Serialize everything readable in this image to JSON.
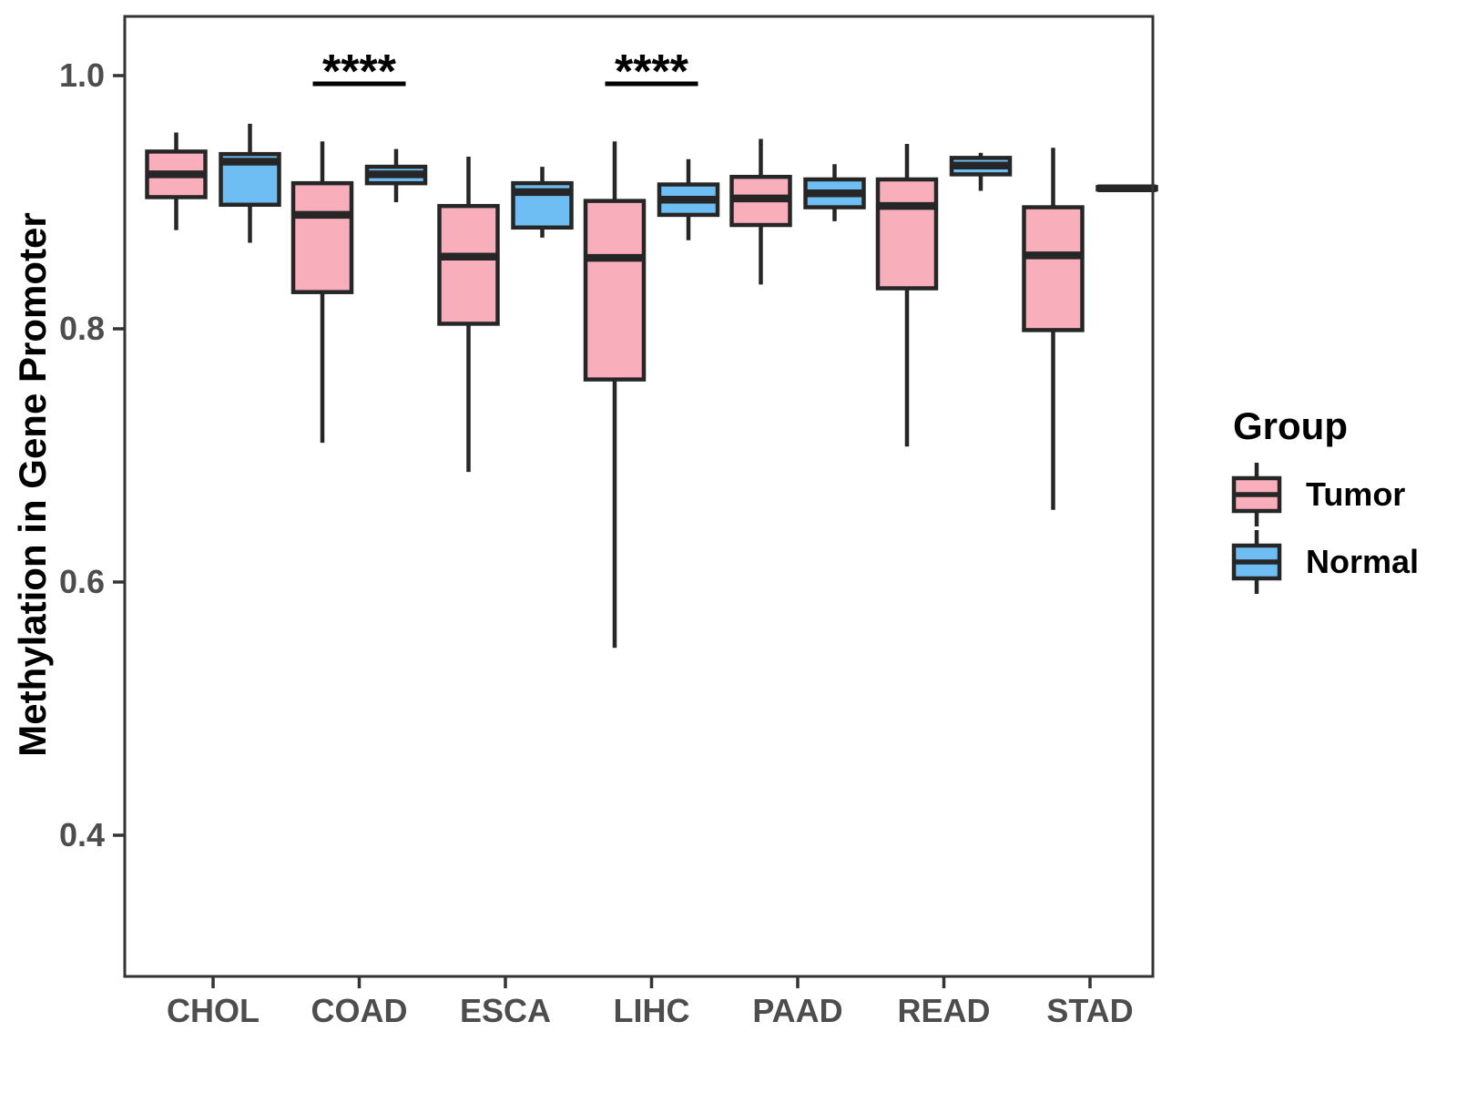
{
  "chart_data": {
    "type": "boxplot",
    "title": "",
    "xlabel": "",
    "ylabel": "Methylation in Gene Promoter",
    "ylim": [
      0.29,
      1.05
    ],
    "grid": "off",
    "yticks": {
      "values": [
        1.0,
        0.8,
        0.6,
        0.4
      ],
      "labels": [
        "1.0",
        "0.8",
        "0.6",
        "0.4"
      ]
    },
    "categories": [
      "CHOL",
      "COAD",
      "ESCA",
      "LIHC",
      "PAAD",
      "READ",
      "STAD"
    ],
    "colors": {
      "tumor": "#F9AEBC",
      "normal": "#6FBEF3",
      "box_stroke": "#262626",
      "axis": "#333333",
      "axis_text": "#4d4d4d"
    },
    "series": [
      {
        "name": "Tumor",
        "color": "#F9AEBC",
        "boxes": [
          {
            "category": "CHOL",
            "low": 0.878,
            "q1": 0.904,
            "median": 0.922,
            "q3": 0.94,
            "high": 0.955
          },
          {
            "category": "COAD",
            "low": 0.71,
            "q1": 0.829,
            "median": 0.89,
            "q3": 0.915,
            "high": 0.948
          },
          {
            "category": "ESCA",
            "low": 0.687,
            "q1": 0.804,
            "median": 0.857,
            "q3": 0.897,
            "high": 0.936
          },
          {
            "category": "LIHC",
            "low": 0.548,
            "q1": 0.76,
            "median": 0.856,
            "q3": 0.901,
            "high": 0.948
          },
          {
            "category": "PAAD",
            "low": 0.835,
            "q1": 0.882,
            "median": 0.903,
            "q3": 0.92,
            "high": 0.95
          },
          {
            "category": "READ",
            "low": 0.707,
            "q1": 0.832,
            "median": 0.897,
            "q3": 0.918,
            "high": 0.946
          },
          {
            "category": "STAD",
            "low": 0.657,
            "q1": 0.799,
            "median": 0.858,
            "q3": 0.896,
            "high": 0.943
          }
        ]
      },
      {
        "name": "Normal",
        "color": "#6FBEF3",
        "boxes": [
          {
            "category": "CHOL",
            "low": 0.868,
            "q1": 0.898,
            "median": 0.932,
            "q3": 0.938,
            "high": 0.962
          },
          {
            "category": "COAD",
            "low": 0.9,
            "q1": 0.915,
            "median": 0.922,
            "q3": 0.928,
            "high": 0.942
          },
          {
            "category": "ESCA",
            "low": 0.872,
            "q1": 0.88,
            "median": 0.908,
            "q3": 0.915,
            "high": 0.928
          },
          {
            "category": "LIHC",
            "low": 0.87,
            "q1": 0.89,
            "median": 0.902,
            "q3": 0.914,
            "high": 0.934
          },
          {
            "category": "PAAD",
            "low": 0.885,
            "q1": 0.896,
            "median": 0.907,
            "q3": 0.918,
            "high": 0.93
          },
          {
            "category": "READ",
            "low": 0.909,
            "q1": 0.922,
            "median": 0.929,
            "q3": 0.935,
            "high": 0.939
          },
          {
            "category": "STAD",
            "low": 0.908,
            "q1": 0.91,
            "median": 0.911,
            "q3": 0.912,
            "high": 0.914
          }
        ]
      }
    ],
    "annotations": [
      {
        "category": "COAD",
        "label": "****"
      },
      {
        "category": "LIHC",
        "label": "****"
      }
    ],
    "legend": {
      "title": "Group",
      "position": "right",
      "entries": [
        {
          "label": "Tumor"
        },
        {
          "label": "Normal"
        }
      ]
    }
  }
}
